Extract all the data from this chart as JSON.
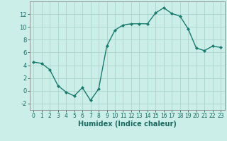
{
  "x": [
    0,
    1,
    2,
    3,
    4,
    5,
    6,
    7,
    8,
    9,
    10,
    11,
    12,
    13,
    14,
    15,
    16,
    17,
    18,
    19,
    20,
    21,
    22,
    23
  ],
  "y": [
    4.5,
    4.3,
    3.3,
    0.8,
    -0.2,
    -0.8,
    0.5,
    -1.5,
    0.3,
    7.0,
    9.5,
    10.3,
    10.5,
    10.5,
    10.5,
    12.2,
    13.0,
    12.1,
    11.7,
    9.7,
    6.7,
    6.3,
    7.0,
    6.8
  ],
  "line_color": "#1a7a6e",
  "marker": "D",
  "marker_size": 2.0,
  "bg_color": "#cceee8",
  "grid_color": "#aad4cc",
  "xlabel": "Humidex (Indice chaleur)",
  "xlim": [
    -0.5,
    23.5
  ],
  "ylim": [
    -3,
    14
  ],
  "yticks": [
    -2,
    0,
    2,
    4,
    6,
    8,
    10,
    12
  ],
  "xticks": [
    0,
    1,
    2,
    3,
    4,
    5,
    6,
    7,
    8,
    9,
    10,
    11,
    12,
    13,
    14,
    15,
    16,
    17,
    18,
    19,
    20,
    21,
    22,
    23
  ],
  "xtick_labels": [
    "0",
    "1",
    "2",
    "3",
    "4",
    "5",
    "6",
    "7",
    "8",
    "9",
    "10",
    "11",
    "12",
    "13",
    "14",
    "15",
    "16",
    "17",
    "18",
    "19",
    "20",
    "21",
    "22",
    "23"
  ],
  "tick_color": "#1a6a60",
  "spine_color": "#888888",
  "xlabel_fontsize": 7,
  "tick_fontsize": 5.5,
  "ytick_fontsize": 6.0,
  "linewidth": 1.0
}
